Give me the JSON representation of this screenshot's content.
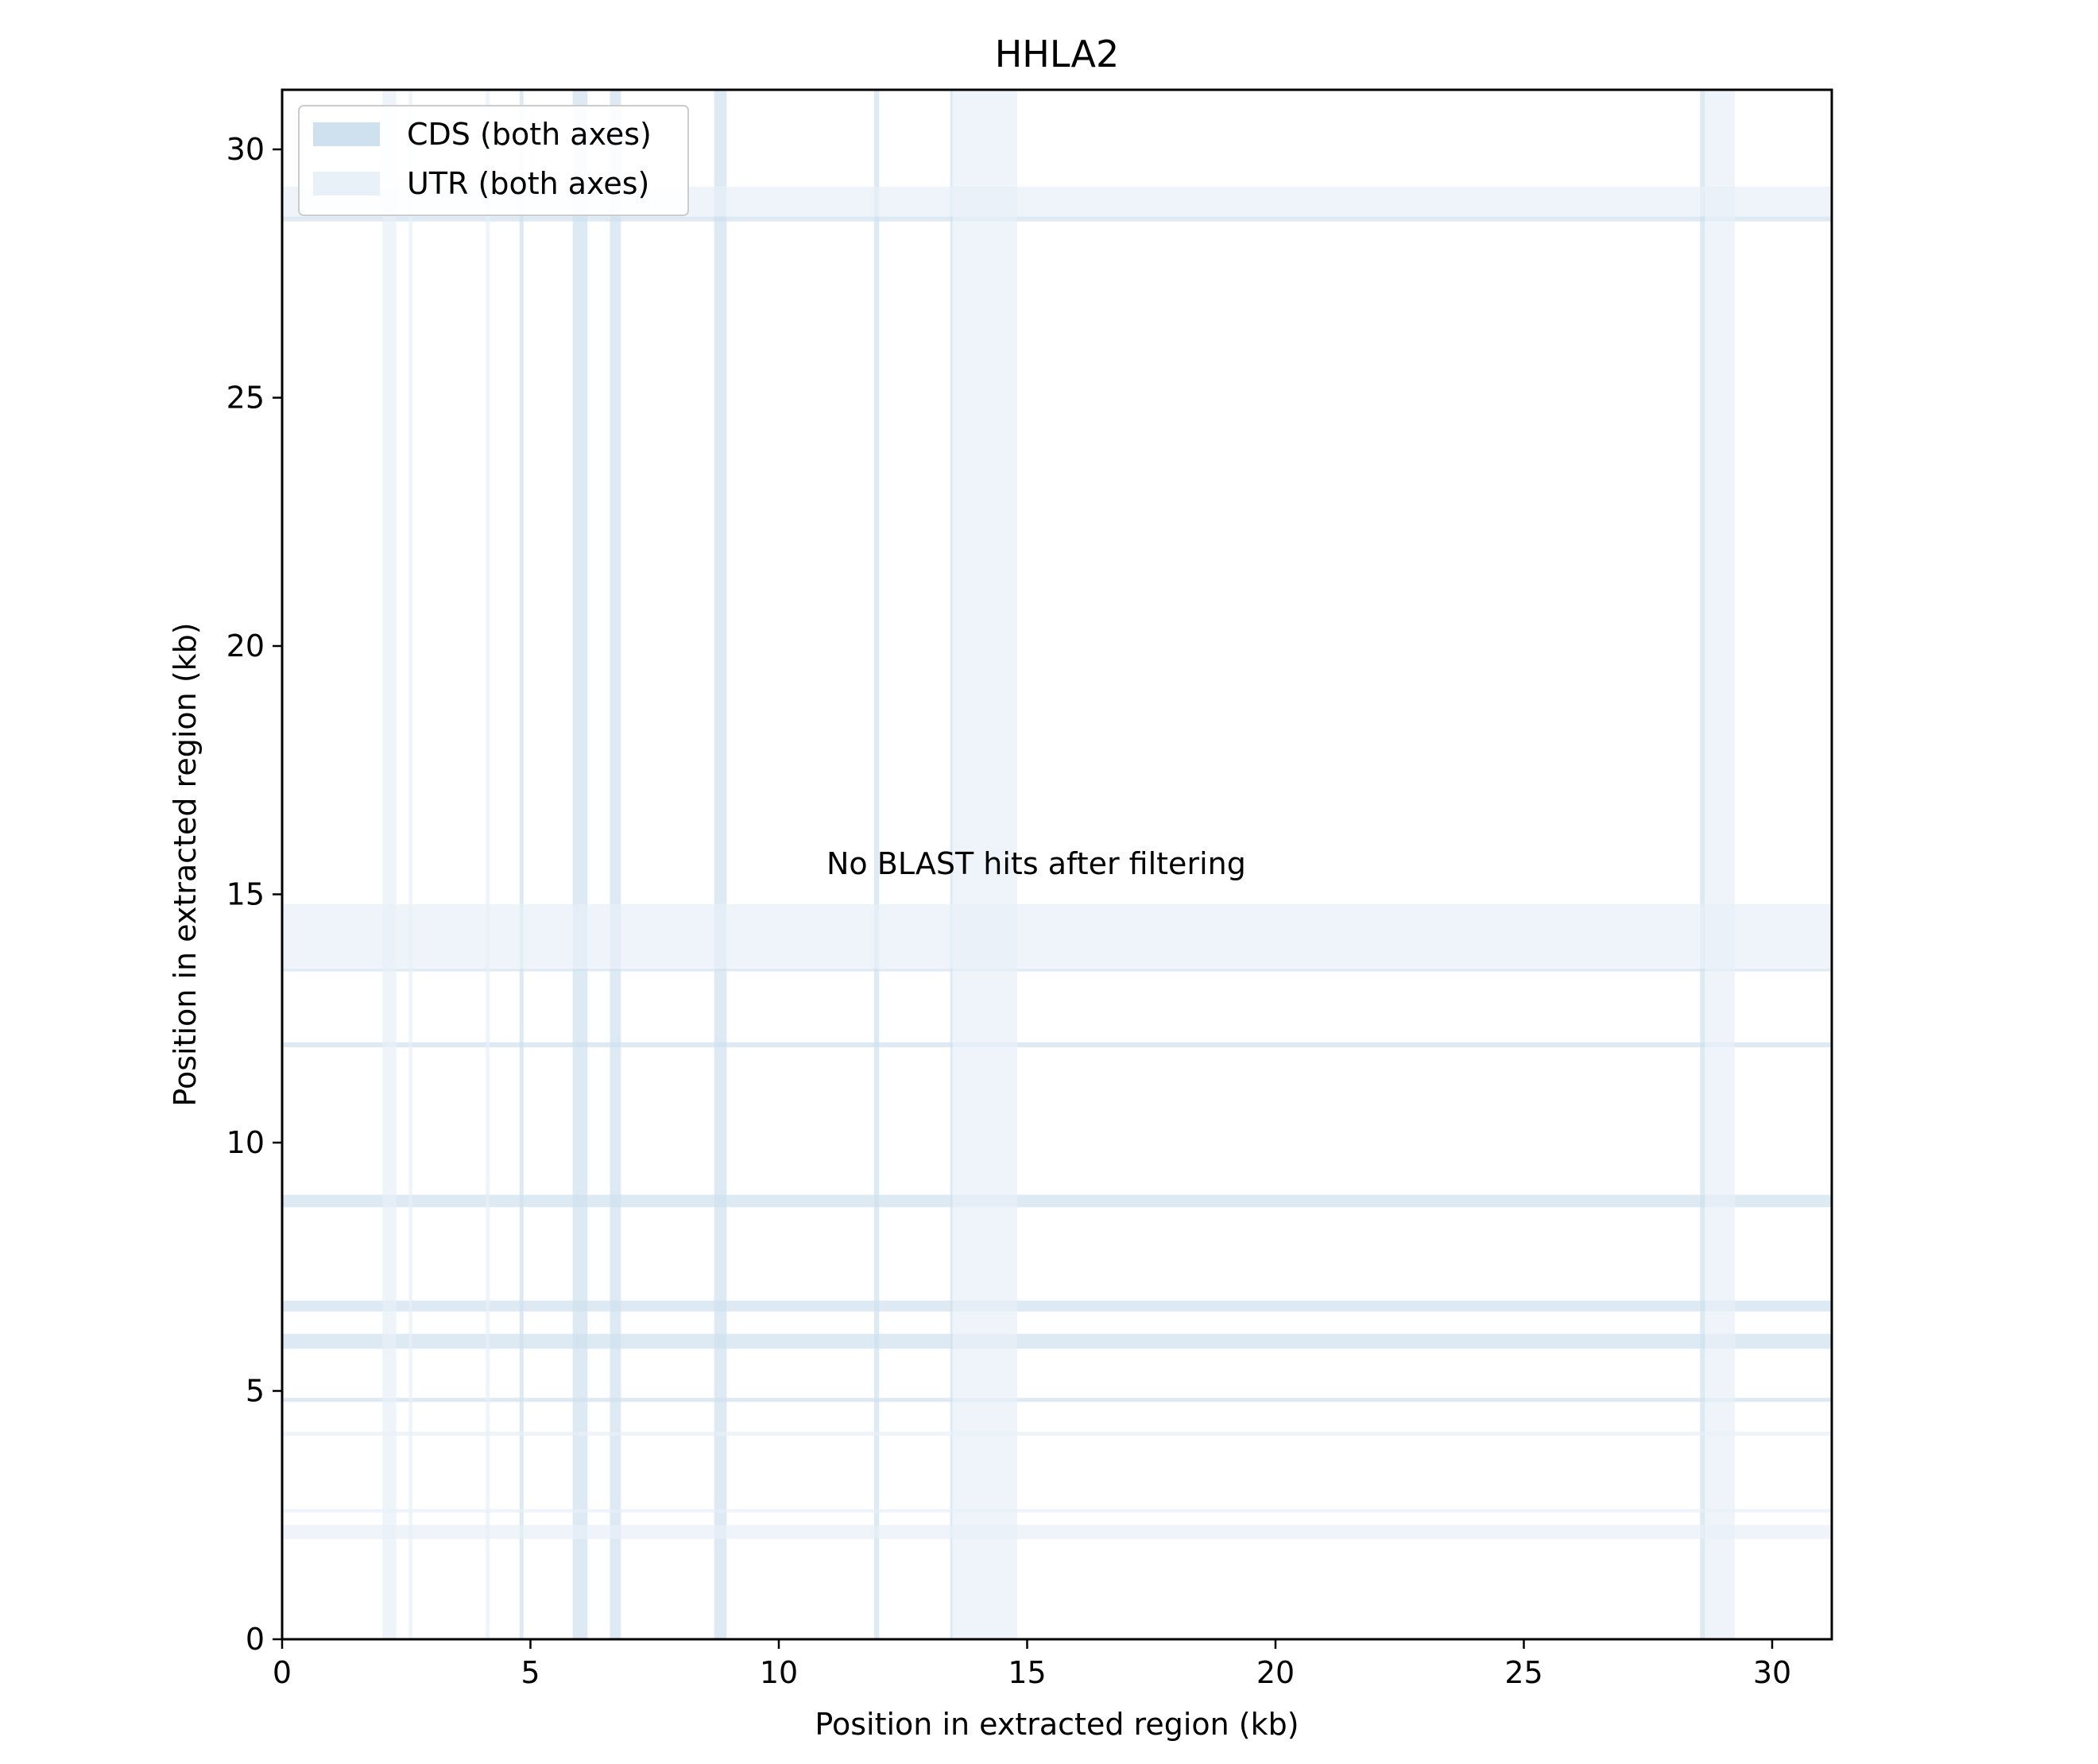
{
  "chart_data": {
    "type": "heatmap",
    "title": "HHLA2",
    "xlabel": "Position in extracted region (kb)",
    "ylabel": "Position in extracted region (kb)",
    "xlim": [
      0,
      31.2
    ],
    "ylim": [
      0,
      31.2
    ],
    "xticks": [
      0,
      5,
      10,
      15,
      20,
      25,
      30
    ],
    "yticks": [
      0,
      5,
      10,
      15,
      20,
      25,
      30
    ],
    "xtick_labels": [
      "0",
      "5",
      "10",
      "15",
      "20",
      "25",
      "30"
    ],
    "ytick_labels": [
      "0",
      "5",
      "10",
      "15",
      "20",
      "25",
      "30"
    ],
    "grid": false,
    "legend_position": "top-left",
    "annotation": "No BLAST hits after filtering",
    "series": [
      {
        "name": "CDS (both axes)",
        "color": "#cfe1ee",
        "intervals_kb": [
          [
            5.85,
            6.15
          ],
          [
            6.6,
            6.82
          ],
          [
            8.7,
            8.95
          ],
          [
            11.92,
            12.02
          ],
          [
            4.78,
            4.86
          ],
          [
            13.45,
            13.5
          ],
          [
            28.55,
            28.65
          ]
        ]
      },
      {
        "name": "UTR (both axes)",
        "color": "#e8f0f8",
        "intervals_kb": [
          [
            2.02,
            2.3
          ],
          [
            2.55,
            2.62
          ],
          [
            4.1,
            4.18
          ],
          [
            13.5,
            14.8
          ],
          [
            28.65,
            29.25
          ]
        ]
      }
    ],
    "points": []
  }
}
